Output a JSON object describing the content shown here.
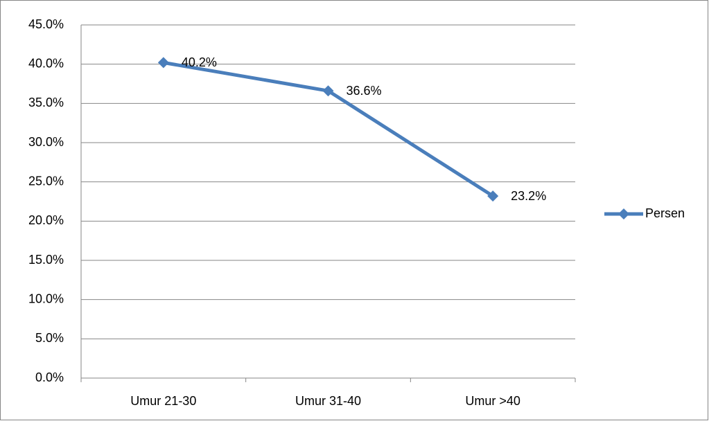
{
  "chart_data": {
    "type": "line",
    "categories": [
      "Umur 21-30",
      "Umur 31-40",
      "Umur >40"
    ],
    "series": [
      {
        "name": "Persen",
        "color": "#4a7ebb",
        "values": [
          40.2,
          36.6,
          23.2
        ],
        "value_labels": [
          "40.2%",
          "36.6%",
          "23.2%"
        ]
      }
    ],
    "ylim": [
      0,
      45
    ],
    "yticks": [
      {
        "value": 0,
        "label": "0.0%"
      },
      {
        "value": 5,
        "label": "5.0%"
      },
      {
        "value": 10,
        "label": "10.0%"
      },
      {
        "value": 15,
        "label": "15.0%"
      },
      {
        "value": 20,
        "label": "20.0%"
      },
      {
        "value": 25,
        "label": "25.0%"
      },
      {
        "value": 30,
        "label": "30.0%"
      },
      {
        "value": 35,
        "label": "35.0%"
      },
      {
        "value": 40,
        "label": "40.0%"
      },
      {
        "value": 45,
        "label": "45.0%"
      }
    ],
    "grid": true,
    "legend": "right"
  }
}
